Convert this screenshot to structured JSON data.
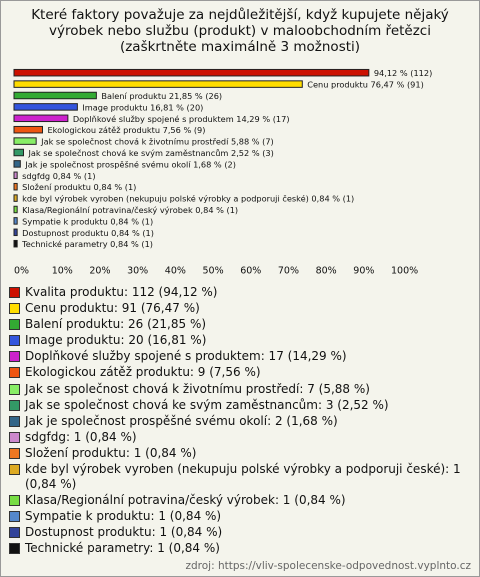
{
  "chart_data": {
    "type": "bar",
    "orientation": "horizontal",
    "title": "Které faktory považuje za nejdůležitější, když kupujete nějaký výrobek nebo službu (produkt) v maloobchodním řetězci (zaškrtněte maximálně 3 možnosti)",
    "categories": [
      "Kvalita produktu",
      "Cenu produktu",
      "Balení produktu",
      "Image produktu",
      "Doplňkové služby spojené s produktem",
      "Ekologickou zátěž produktu",
      "Jak se společnost chová k životnímu prostředí",
      "Jak se společnost chová ke svým zaměstnancům",
      "Jak je společnost prospěšné svému okolí",
      "sdgfdg",
      "Složení produktu",
      "kde byl výrobek vyroben (nekupuju polské výrobky a podporuji české)",
      "Klasa/Regionální potravina/český výrobek",
      "Sympatie k produktu",
      "Dostupnost produktu",
      "Technické parametry"
    ],
    "values": [
      94.12,
      76.47,
      21.85,
      16.81,
      14.29,
      7.56,
      5.88,
      2.52,
      1.68,
      0.84,
      0.84,
      0.84,
      0.84,
      0.84,
      0.84,
      0.84
    ],
    "value_labels": [
      "94,12 % (112)",
      "Cenu produktu 76,47 % (91)",
      "Balení produktu 21,85 % (26)",
      "Image produktu 16,81 % (20)",
      "Doplňkové služby spojené s produktem 14,29 % (17)",
      "Ekologickou zátěž produktu 7,56 % (9)",
      "Jak se společnost chová k životnímu prostředí 5,88 % (7)",
      "Jak se společnost chová ke svým zaměstnancům 2,52 % (3)",
      "Jak je společnost prospěšné svému okolí 1,68 % (2)",
      "sdgfdg 0,84 % (1)",
      "Složení produktu 0,84 % (1)",
      "kde byl výrobek vyroben (nekupuju polské výrobky a podporuji české) 0,84 % (1)",
      "Klasa/Regionální potravina/český výrobek 0,84 % (1)",
      "Sympatie k produktu 0,84 % (1)",
      "Dostupnost produktu 0,84 % (1)",
      "Technické parametry 0,84 % (1)"
    ],
    "legend_labels": [
      "Kvalita produktu: 112 (94,12 %)",
      "Cenu produktu: 91 (76,47 %)",
      "Balení produktu: 26 (21,85 %)",
      "Image produktu: 20 (16,81 %)",
      "Doplňkové služby spojené s produktem: 17 (14,29 %)",
      "Ekologickou zátěž produktu: 9 (7,56 %)",
      "Jak se společnost chová k životnímu prostředí: 7 (5,88 %)",
      "Jak se společnost chová ke svým zaměstnancům: 3 (2,52 %)",
      "Jak je společnost prospěšné svému okolí: 2 (1,68 %)",
      "sdgfdg: 1 (0,84 %)",
      "Složení produktu: 1 (0,84 %)",
      "kde byl výrobek vyroben (nekupuju polské výrobky a podporuji české): 1 (0,84 %)",
      "Klasa/Regionální potravina/český výrobek: 1 (0,84 %)",
      "Sympatie k produktu: 1 (0,84 %)",
      "Dostupnost produktu: 1 (0,84 %)",
      "Technické parametry: 1 (0,84 %)"
    ],
    "colors": [
      "#cc1100",
      "#ffdd00",
      "#33aa33",
      "#3355dd",
      "#cc22cc",
      "#ee5511",
      "#88ee66",
      "#339966",
      "#336688",
      "#cc88cc",
      "#ee7722",
      "#ddaa22",
      "#77dd44",
      "#5588cc",
      "#334499",
      "#111111"
    ],
    "xlim": [
      0,
      100
    ],
    "xticks": [
      {
        "value": 0,
        "label": "0%"
      },
      {
        "value": 10,
        "label": "10%"
      },
      {
        "value": 20,
        "label": "20%"
      },
      {
        "value": 30,
        "label": "30%"
      },
      {
        "value": 40,
        "label": "40%"
      },
      {
        "value": 50,
        "label": "50%"
      },
      {
        "value": 60,
        "label": "60%"
      },
      {
        "value": 70,
        "label": "70%"
      },
      {
        "value": 80,
        "label": "80%"
      },
      {
        "value": 90,
        "label": "90%"
      },
      {
        "value": 100,
        "label": "100%"
      }
    ],
    "grid": false,
    "source": "zdroj: https://vliv-spolecenske-odpovednost.vyplnto.cz"
  }
}
